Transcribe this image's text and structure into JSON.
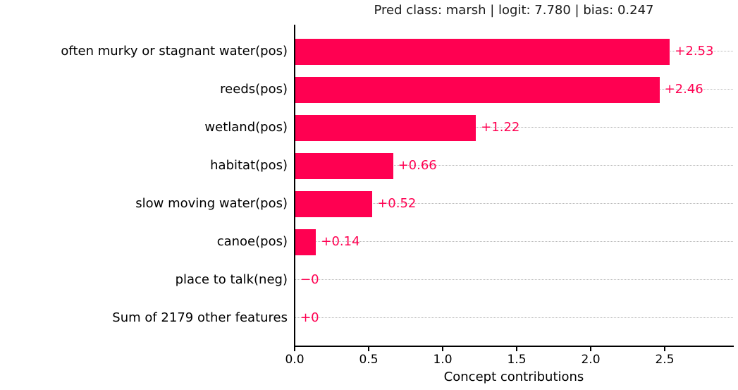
{
  "figure": {
    "title": "Pred class: marsh | logit: 7.780 | bias: 0.247",
    "xlabel": "Concept contributions"
  },
  "colors": {
    "bar": "#ff0051",
    "value_label": "#ff0051",
    "gridline": "#b5b5b5",
    "axis": "#000000",
    "text": "#1a1a1a",
    "background": "#ffffff"
  },
  "chart_data": {
    "type": "bar",
    "orientation": "horizontal",
    "title": "Pred class: marsh | logit: 7.780 | bias: 0.247",
    "xlabel": "Concept contributions",
    "ylabel": "",
    "categories": [
      "often murky or stagnant water(pos)",
      "reeds(pos)",
      "wetland(pos)",
      "habitat(pos)",
      "slow moving water(pos)",
      "canoe(pos)",
      "place to talk(neg)",
      "Sum of 2179 other features"
    ],
    "values": [
      2.53,
      2.46,
      1.22,
      0.66,
      0.52,
      0.14,
      0.0,
      0.0
    ],
    "value_labels": [
      "+2.53",
      "+2.46",
      "+1.22",
      "+0.66",
      "+0.52",
      "+0.14",
      "−0",
      "+0"
    ],
    "xlim": [
      0.0,
      2.96
    ],
    "xticks": [
      0.0,
      0.5,
      1.0,
      1.5,
      2.0,
      2.5
    ],
    "xtick_labels": [
      "0.0",
      "0.5",
      "1.0",
      "1.5",
      "2.0",
      "2.5"
    ],
    "grid": "horizontal-dotted",
    "legend": null,
    "bar_color": "#ff0051"
  }
}
